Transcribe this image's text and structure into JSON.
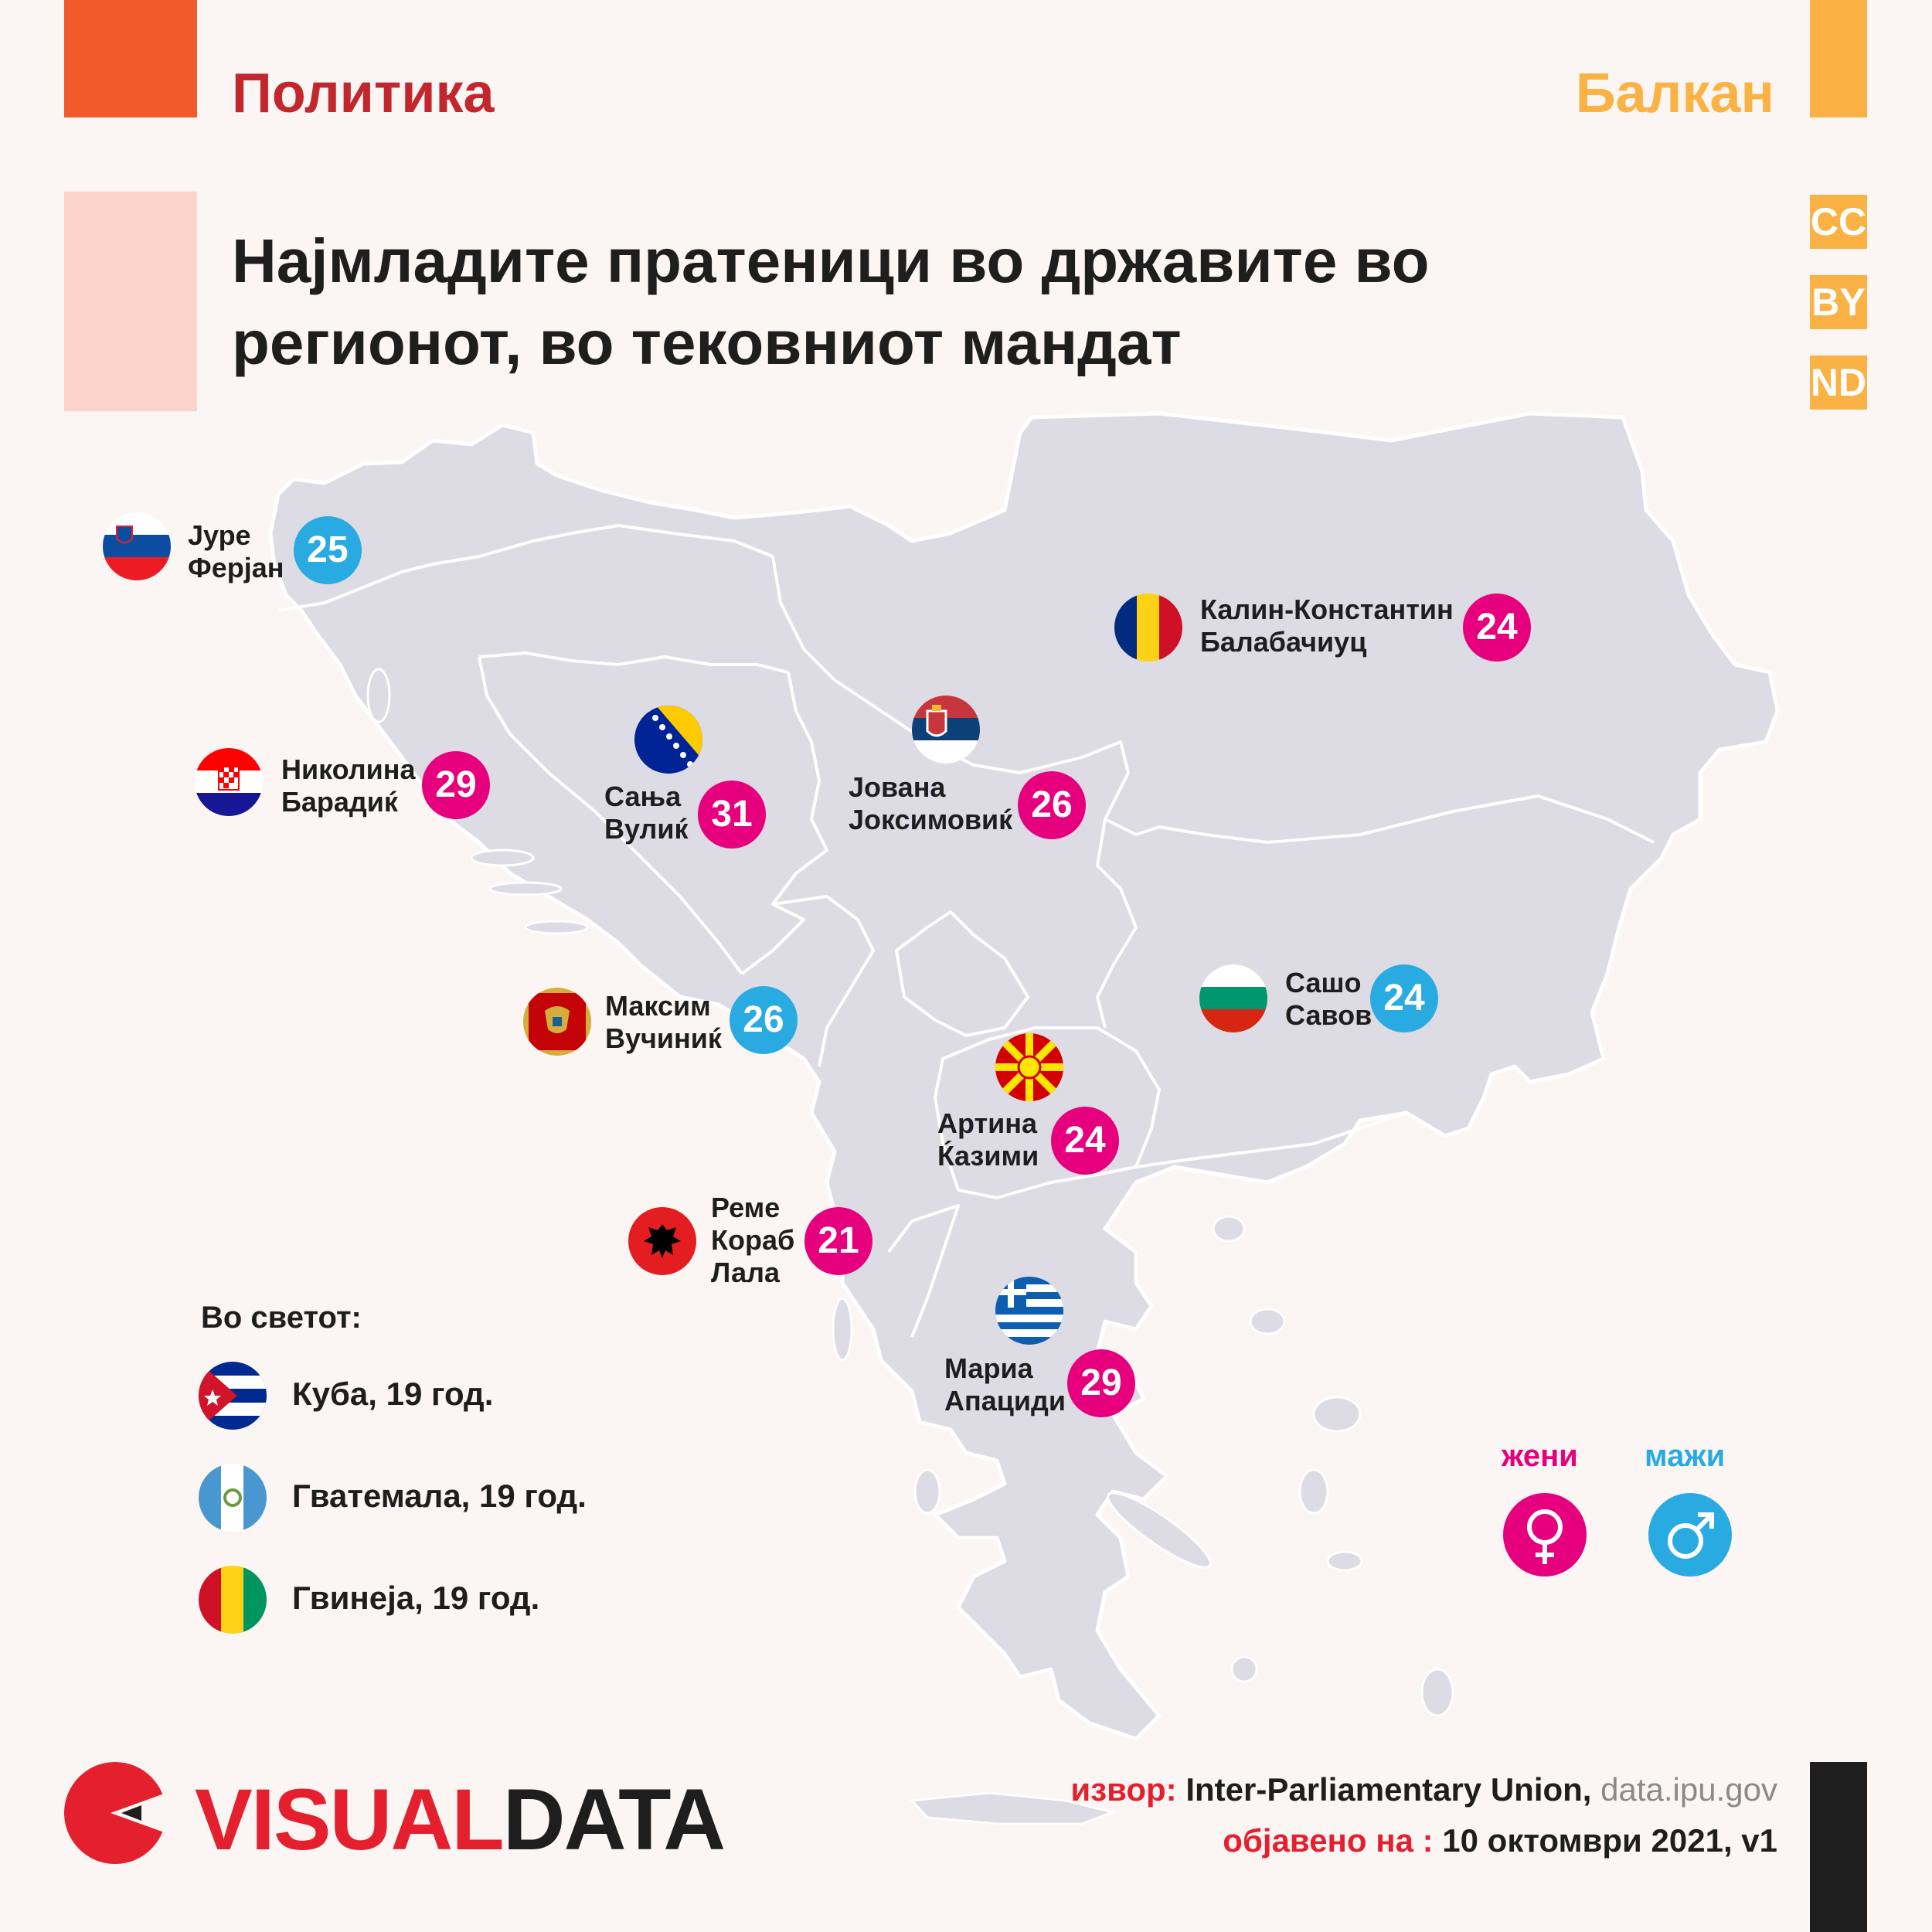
{
  "header": {
    "category_left": "Политика",
    "category_right": "Балкан",
    "title_line1": "Најмладите пратеници во државите во",
    "title_line2": "регионот, во тековниот мандат",
    "license": [
      "CC",
      "BY",
      "ND"
    ]
  },
  "colors": {
    "background": "#fbf6f3",
    "map_land": "#dddbe3",
    "women": "#e6007e",
    "men": "#29abe2",
    "accent_orange": "#f15a2b",
    "accent_yellow": "#fbb244",
    "accent_pink": "#fcd3c8",
    "brand_red": "#e5202e"
  },
  "mps": [
    {
      "country": "Slovenia",
      "flag_icon": "slovenia-flag-icon",
      "name_line1": "Јуре",
      "name_line2": "Ферјан",
      "age": "25",
      "gender": "male"
    },
    {
      "country": "Croatia",
      "flag_icon": "croatia-flag-icon",
      "name_line1": "Николина",
      "name_line2": "Барадиќ",
      "age": "29",
      "gender": "female"
    },
    {
      "country": "Bosnia and Herzegovina",
      "flag_icon": "bosnia-flag-icon",
      "name_line1": "Сања",
      "name_line2": "Вулиќ",
      "age": "31",
      "gender": "female"
    },
    {
      "country": "Serbia",
      "flag_icon": "serbia-flag-icon",
      "name_line1": "Јована",
      "name_line2": "Јоксимовиќ",
      "age": "26",
      "gender": "female"
    },
    {
      "country": "Romania",
      "flag_icon": "romania-flag-icon",
      "name_line1": "Калин-Константин",
      "name_line2": "Балабачиуц",
      "age": "24",
      "gender": "female"
    },
    {
      "country": "Montenegro",
      "flag_icon": "montenegro-flag-icon",
      "name_line1": "Максим",
      "name_line2": "Вучиниќ",
      "age": "26",
      "gender": "male"
    },
    {
      "country": "Bulgaria",
      "flag_icon": "bulgaria-flag-icon",
      "name_line1": "Сашо",
      "name_line2": "Савов",
      "age": "24",
      "gender": "male"
    },
    {
      "country": "North Macedonia",
      "flag_icon": "macedonia-flag-icon",
      "name_line1": "Артина",
      "name_line2": "Ќазими",
      "age": "24",
      "gender": "female"
    },
    {
      "country": "Albania",
      "flag_icon": "albania-flag-icon",
      "name_line1": "Реме",
      "name_line2": "Кораб",
      "name_line3": "Лала",
      "age": "21",
      "gender": "female"
    },
    {
      "country": "Greece",
      "flag_icon": "greece-flag-icon",
      "name_line1": "Мариа",
      "name_line2": "Апациди",
      "age": "29",
      "gender": "female"
    }
  ],
  "world": {
    "heading": "Во светот:",
    "items": [
      {
        "flag_icon": "cuba-flag-icon",
        "label": "Куба, 19 год."
      },
      {
        "flag_icon": "guatemala-flag-icon",
        "label": "Гватемала, 19 год."
      },
      {
        "flag_icon": "guinea-flag-icon",
        "label": "Гвинеја, 19 год."
      }
    ]
  },
  "legend": {
    "women_label": "жени",
    "men_label": "мажи",
    "women_icon": "female-symbol-icon",
    "men_icon": "male-symbol-icon"
  },
  "footer": {
    "brand_part1": "VISUAL",
    "brand_part2": "DATA",
    "source_label": "извор:",
    "source_text": "Inter-Parliamentary Union,",
    "source_url": "data.ipu.gov",
    "published_label": "објавено на :",
    "published_date": "10 октомври 2021, v1"
  }
}
